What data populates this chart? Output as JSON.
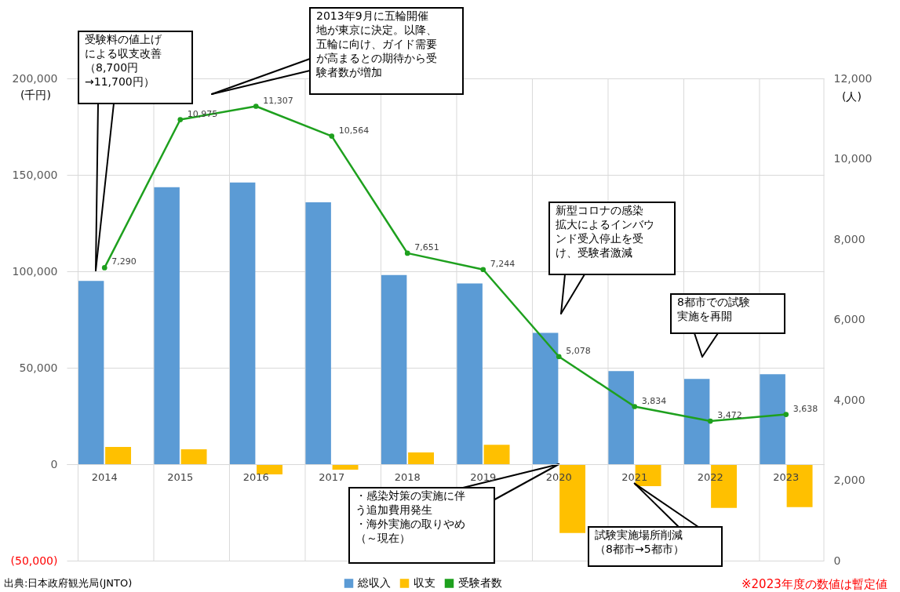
{
  "chart_data": {
    "type": "bar",
    "categories": [
      "2014",
      "2015",
      "2016",
      "2017",
      "2018",
      "2019",
      "2020",
      "2021",
      "2022",
      "2023"
    ],
    "ylabel": "(千円)",
    "y2label": "(人)",
    "ylim": [
      -50000,
      200000
    ],
    "yticks": [
      {
        "value": -50000,
        "label": "(50,000)"
      },
      0,
      {
        "value": 50000,
        "label": "50,000"
      },
      {
        "value": 100000,
        "label": "100,000"
      },
      {
        "value": 150000,
        "label": "150,000"
      },
      {
        "value": 200000,
        "label": "200,000"
      }
    ],
    "y2lim": [
      0,
      12000
    ],
    "y2ticks": [
      0,
      {
        "value": 2000,
        "label": "2,000"
      },
      {
        "value": 4000,
        "label": "4,000"
      },
      {
        "value": 6000,
        "label": "6,000"
      },
      {
        "value": 8000,
        "label": "8,000"
      },
      {
        "value": 10000,
        "label": "10,000"
      },
      {
        "value": 12000,
        "label": "12,000"
      }
    ],
    "series": [
      {
        "name": "総収入",
        "color": "#5b9bd5",
        "axis": "y",
        "values": [
          95000,
          143600,
          146000,
          135800,
          98100,
          93700,
          68100,
          48300,
          44200,
          46600
        ]
      },
      {
        "name": "収支",
        "color": "#ffc000",
        "axis": "y",
        "values": [
          8900,
          7700,
          -5300,
          -2800,
          6100,
          10100,
          -35700,
          -11400,
          -22700,
          -22300
        ]
      },
      {
        "name": "受験者数",
        "color": "#1ea01e",
        "type": "line",
        "axis": "y2",
        "marker": "circle",
        "values": [
          7290,
          10975,
          11307,
          10564,
          7651,
          7244,
          5078,
          3834,
          3472,
          3638
        ],
        "value_labels": [
          "7,290",
          "10,975",
          "11,307",
          "10,564",
          "7,651",
          "7,244",
          "5,078",
          "3,834",
          "3,472",
          "3,638"
        ]
      }
    ],
    "grid": true,
    "legend": "bottom",
    "annotations": [
      "受験料の値上げによる収支改善（8,700円→11,700円）",
      "2013年9月に五輪開催地が東京に決定。以降、五輪に向け、ガイド需要が高まるとの期待から受験者数が増加",
      "新型コロナの感染拡大によるインバウンド受入停止を受け、受験者激減",
      "8都市での試験実施を再開",
      {
        "text": "・感染対策の実施に伴う追加費用発生・海外実施の取りやめ（～現在）",
        "x": "2020",
        "y": 0
      },
      {
        "text": "試験実施場所削減（8都市→5都市）",
        "x": "2021",
        "y": -10000
      },
      "出典:日本政府観光局(JNTO)",
      "※2023年度の数値は暫定値"
    ]
  }
}
